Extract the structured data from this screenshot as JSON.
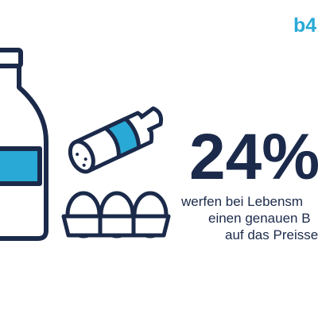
{
  "logo": "b4",
  "headline": "24%",
  "body_lines": [
    "werfen bei Lebensm",
    "einen genauen B",
    "auf das Preisse"
  ]
}
